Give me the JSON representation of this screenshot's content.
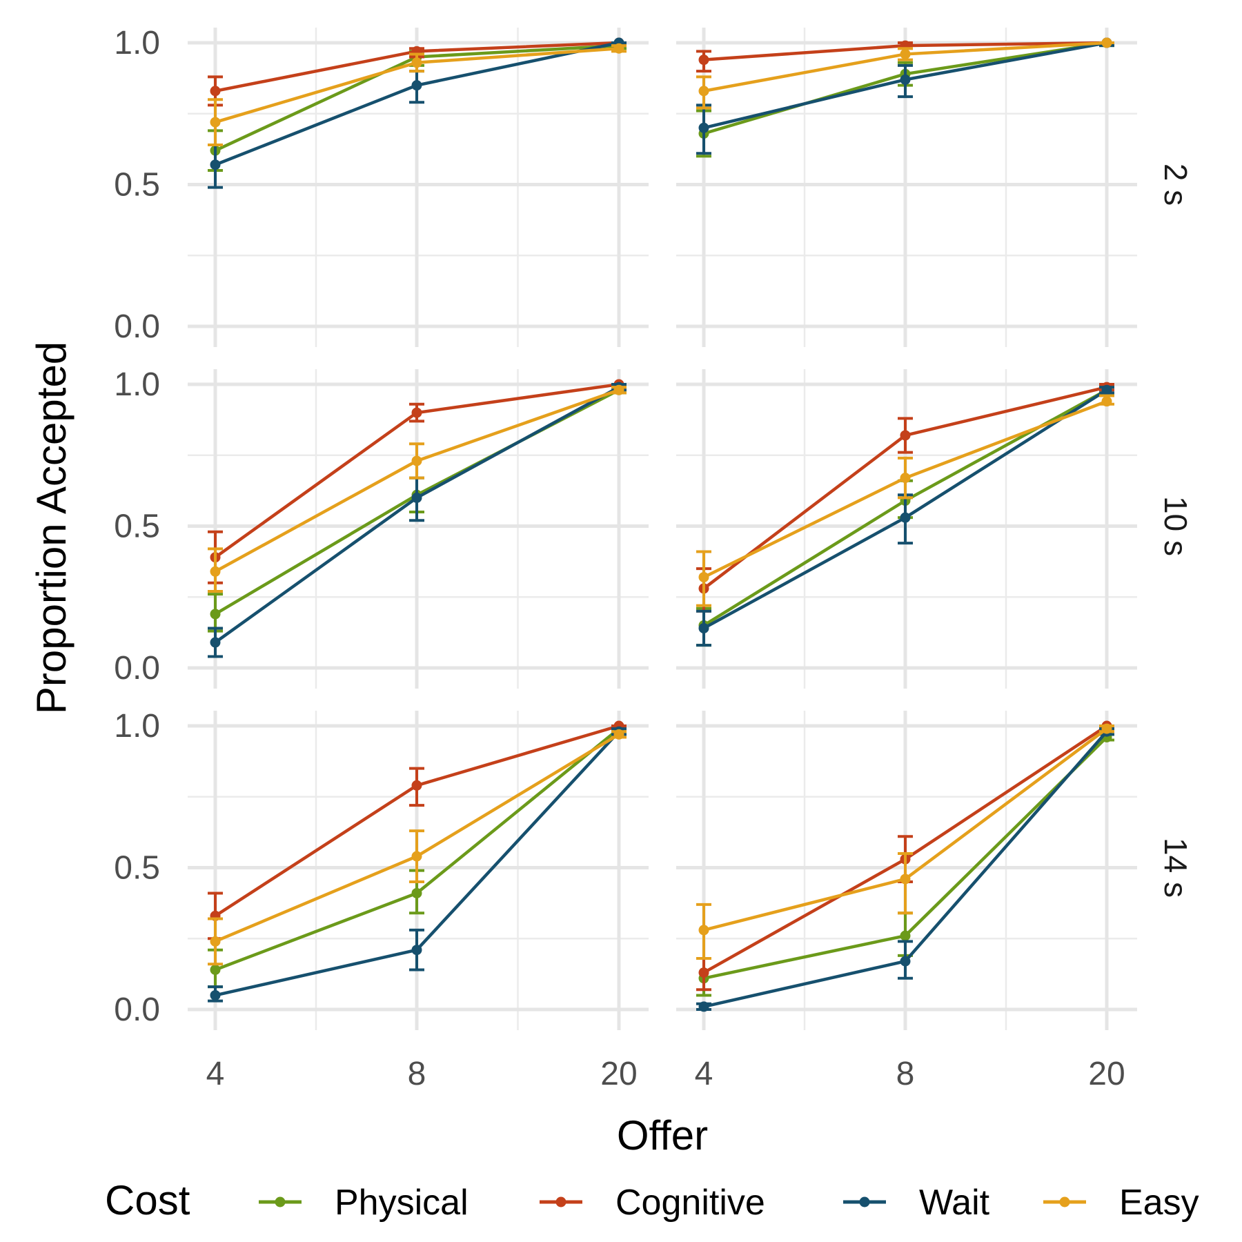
{
  "chart_data": {
    "type": "line",
    "xlabel": "Offer",
    "ylabel": "Proportion Accepted",
    "x_categories": [
      "4",
      "8",
      "20"
    ],
    "y_ticks": [
      "0.0",
      "0.5",
      "1.0"
    ],
    "ylim": [
      0,
      1
    ],
    "grid": true,
    "legend": {
      "title": "Cost",
      "position": "bottom",
      "entries": [
        {
          "name": "Physical",
          "color": "#6b9a1a"
        },
        {
          "name": "Cognitive",
          "color": "#c4401a"
        },
        {
          "name": "Wait",
          "color": "#16506e"
        },
        {
          "name": "Easy",
          "color": "#e5a01c"
        }
      ]
    },
    "row_labels": [
      "2 s",
      "10 s",
      "14 s"
    ],
    "panels": [
      {
        "row": 0,
        "col": 0,
        "series": [
          {
            "name": "Physical",
            "values": [
              0.62,
              0.95,
              0.99
            ],
            "lower": [
              0.55,
              0.92,
              0.98
            ],
            "upper": [
              0.69,
              0.97,
              1.0
            ]
          },
          {
            "name": "Cognitive",
            "values": [
              0.83,
              0.97,
              1.0
            ],
            "lower": [
              0.78,
              0.95,
              0.99
            ],
            "upper": [
              0.88,
              0.98,
              1.0
            ]
          },
          {
            "name": "Wait",
            "values": [
              0.57,
              0.85,
              1.0
            ],
            "lower": [
              0.49,
              0.79,
              0.99
            ],
            "upper": [
              0.64,
              0.9,
              1.0
            ]
          },
          {
            "name": "Easy",
            "values": [
              0.72,
              0.93,
              0.98
            ],
            "lower": [
              0.64,
              0.9,
              0.97
            ],
            "upper": [
              0.8,
              0.96,
              0.99
            ]
          }
        ]
      },
      {
        "row": 0,
        "col": 1,
        "series": [
          {
            "name": "Physical",
            "values": [
              0.68,
              0.89,
              1.0
            ],
            "lower": [
              0.6,
              0.85,
              0.99
            ],
            "upper": [
              0.76,
              0.93,
              1.0
            ]
          },
          {
            "name": "Cognitive",
            "values": [
              0.94,
              0.99,
              1.0
            ],
            "lower": [
              0.9,
              0.98,
              1.0
            ],
            "upper": [
              0.97,
              1.0,
              1.0
            ]
          },
          {
            "name": "Wait",
            "values": [
              0.7,
              0.87,
              1.0
            ],
            "lower": [
              0.61,
              0.81,
              0.99
            ],
            "upper": [
              0.78,
              0.92,
              1.0
            ]
          },
          {
            "name": "Easy",
            "values": [
              0.83,
              0.96,
              1.0
            ],
            "lower": [
              0.77,
              0.94,
              1.0
            ],
            "upper": [
              0.88,
              0.98,
              1.0
            ]
          }
        ]
      },
      {
        "row": 1,
        "col": 0,
        "series": [
          {
            "name": "Physical",
            "values": [
              0.19,
              0.61,
              0.98
            ],
            "lower": [
              0.13,
              0.55,
              0.97
            ],
            "upper": [
              0.26,
              0.67,
              0.99
            ]
          },
          {
            "name": "Cognitive",
            "values": [
              0.39,
              0.9,
              1.0
            ],
            "lower": [
              0.3,
              0.87,
              0.99
            ],
            "upper": [
              0.48,
              0.93,
              1.0
            ]
          },
          {
            "name": "Wait",
            "values": [
              0.09,
              0.6,
              0.99
            ],
            "lower": [
              0.04,
              0.52,
              0.98
            ],
            "upper": [
              0.14,
              0.67,
              1.0
            ]
          },
          {
            "name": "Easy",
            "values": [
              0.34,
              0.73,
              0.98
            ],
            "lower": [
              0.27,
              0.67,
              0.97
            ],
            "upper": [
              0.42,
              0.79,
              0.99
            ]
          }
        ]
      },
      {
        "row": 1,
        "col": 1,
        "series": [
          {
            "name": "Physical",
            "values": [
              0.15,
              0.59,
              0.98
            ],
            "lower": [
              0.08,
              0.53,
              0.97
            ],
            "upper": [
              0.21,
              0.66,
              0.99
            ]
          },
          {
            "name": "Cognitive",
            "values": [
              0.28,
              0.82,
              0.99
            ],
            "lower": [
              0.2,
              0.76,
              0.98
            ],
            "upper": [
              0.35,
              0.88,
              1.0
            ]
          },
          {
            "name": "Wait",
            "values": [
              0.14,
              0.53,
              0.98
            ],
            "lower": [
              0.08,
              0.44,
              0.97
            ],
            "upper": [
              0.2,
              0.61,
              0.99
            ]
          },
          {
            "name": "Easy",
            "values": [
              0.32,
              0.67,
              0.94
            ],
            "lower": [
              0.22,
              0.6,
              0.93
            ],
            "upper": [
              0.41,
              0.74,
              0.96
            ]
          }
        ]
      },
      {
        "row": 2,
        "col": 0,
        "series": [
          {
            "name": "Physical",
            "values": [
              0.14,
              0.41,
              0.99
            ],
            "lower": [
              0.08,
              0.34,
              0.98
            ],
            "upper": [
              0.21,
              0.49,
              1.0
            ]
          },
          {
            "name": "Cognitive",
            "values": [
              0.33,
              0.79,
              1.0
            ],
            "lower": [
              0.25,
              0.72,
              0.99
            ],
            "upper": [
              0.41,
              0.85,
              1.0
            ]
          },
          {
            "name": "Wait",
            "values": [
              0.05,
              0.21,
              0.98
            ],
            "lower": [
              0.03,
              0.14,
              0.97
            ],
            "upper": [
              0.08,
              0.28,
              0.99
            ]
          },
          {
            "name": "Easy",
            "values": [
              0.24,
              0.54,
              0.97
            ],
            "lower": [
              0.16,
              0.45,
              0.96
            ],
            "upper": [
              0.32,
              0.63,
              0.98
            ]
          }
        ]
      },
      {
        "row": 2,
        "col": 1,
        "series": [
          {
            "name": "Physical",
            "values": [
              0.11,
              0.26,
              0.96
            ],
            "lower": [
              0.05,
              0.19,
              0.95
            ],
            "upper": [
              0.18,
              0.34,
              0.97
            ]
          },
          {
            "name": "Cognitive",
            "values": [
              0.13,
              0.53,
              1.0
            ],
            "lower": [
              0.07,
              0.45,
              0.99
            ],
            "upper": [
              0.18,
              0.61,
              1.0
            ]
          },
          {
            "name": "Wait",
            "values": [
              0.01,
              0.17,
              0.98
            ],
            "lower": [
              0.0,
              0.11,
              0.97
            ],
            "upper": [
              0.02,
              0.24,
              0.99
            ]
          },
          {
            "name": "Easy",
            "values": [
              0.28,
              0.46,
              0.99
            ],
            "lower": [
              0.18,
              0.34,
              0.98
            ],
            "upper": [
              0.37,
              0.55,
              1.0
            ]
          }
        ]
      }
    ]
  }
}
